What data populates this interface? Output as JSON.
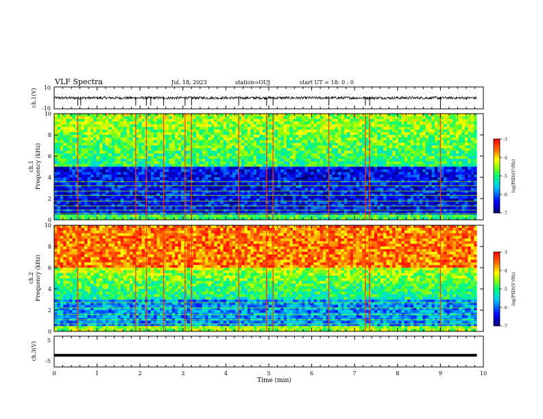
{
  "header": {
    "title": "VLF Spectra",
    "date": "Jul. 18, 2023",
    "station": "station=OUJ",
    "start": "start UT =  18: 0  : 0"
  },
  "chart_data": [
    {
      "type": "line",
      "panel": "ch1-waveform",
      "ylabel": "ch.1(V)",
      "ylim": [
        -10,
        10
      ],
      "yticks": [
        "10",
        "-10"
      ],
      "xlim": [
        0,
        10
      ],
      "baseline": 0,
      "noise_amplitude": 1.2,
      "spike_times": [
        0.55,
        0.62,
        1.9,
        2.15,
        2.25,
        2.55,
        3.05,
        3.2,
        4.3,
        4.95,
        5.1,
        6.4,
        7.25,
        7.35,
        9.0
      ],
      "color": "#000000"
    },
    {
      "type": "heatmap",
      "panel": "ch1-spectrogram",
      "ylabel": "ch.1\nFrequency (kHz)",
      "xlim": [
        0,
        9.85
      ],
      "ylim": [
        0,
        10
      ],
      "yticks": [
        "0",
        "2",
        "4",
        "6",
        "8",
        "10"
      ],
      "colorbar": {
        "label": "log(PSD)(V²/Hz)",
        "range": [
          -7,
          -3
        ],
        "ticks": [
          "-3",
          "-4",
          "-5",
          "-6",
          "-7"
        ]
      },
      "low_band_kHz": 5,
      "high_band_level": -4.4,
      "low_band_level": -6.4,
      "lines_kHz": [
        0.35,
        0.6,
        0.9,
        1.3,
        1.75,
        2.3,
        2.7,
        3.2,
        3.6
      ],
      "spike_times": [
        0.55,
        1.9,
        2.15,
        2.55,
        3.05,
        3.2,
        4.3,
        4.95,
        5.1,
        6.4,
        7.25,
        7.35,
        9.0
      ]
    },
    {
      "type": "heatmap",
      "panel": "ch2-spectrogram",
      "ylabel": "ch.2\nFrequency (kHz)",
      "xlim": [
        0,
        9.85
      ],
      "ylim": [
        0,
        10
      ],
      "yticks": [
        "0",
        "2",
        "4",
        "6",
        "8",
        "10"
      ],
      "colorbar": {
        "label": "log(PSD)(V²/Hz)",
        "range": [
          -7,
          -3
        ],
        "ticks": [
          "-3",
          "-4",
          "-5",
          "-6",
          "-7"
        ]
      },
      "high_band_level": -3.6,
      "mid_band_kHz": [
        3,
        6
      ],
      "low_band_level": -5.8,
      "lines_kHz": [
        0.35,
        0.7,
        1.1,
        1.6,
        2.2,
        2.7
      ],
      "spike_times": [
        0.55,
        1.9,
        2.15,
        2.55,
        3.05,
        3.2,
        4.3,
        4.95,
        5.1,
        6.4,
        7.25,
        7.35,
        9.0
      ]
    },
    {
      "type": "line",
      "panel": "ch3-waveform",
      "ylabel": "ch.3(V)",
      "ylim": [
        -5,
        5
      ],
      "yticks": [
        "5",
        "-5"
      ],
      "xlim": [
        0,
        10
      ],
      "constant_value": -1.2,
      "color": "#000000"
    }
  ],
  "xaxis": {
    "label": "Time (min)",
    "ticks": [
      "0",
      "1",
      "2",
      "3",
      "4",
      "5",
      "6",
      "7",
      "8",
      "9",
      "10"
    ]
  },
  "colors": {
    "axis": "#000000",
    "background": "#ffffff"
  }
}
